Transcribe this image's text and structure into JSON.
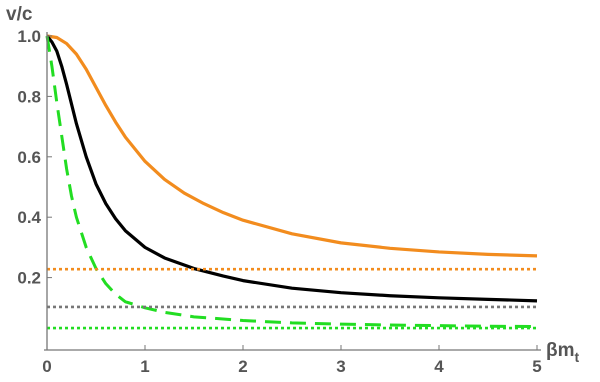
{
  "chart_data": {
    "type": "line",
    "title": "",
    "xlabel": "βm",
    "xlabel_sub": "t",
    "ylabel": "v/c",
    "xlim": [
      0,
      5
    ],
    "ylim": [
      0,
      1
    ],
    "grid": false,
    "legend": "none",
    "x_ticks": [
      "0",
      "1",
      "2",
      "3",
      "4",
      "5"
    ],
    "y_ticks": [
      "0.2",
      "0.4",
      "0.6",
      "0.8",
      "1.0"
    ],
    "x_tick_values": [
      0,
      1,
      2,
      3,
      4,
      5
    ],
    "y_tick_values": [
      0.2,
      0.4,
      0.6,
      0.8,
      1.0
    ],
    "series": [
      {
        "color": "#f28c1e",
        "style": "solid",
        "x": [
          0,
          0.1,
          0.2,
          0.3,
          0.4,
          0.5,
          0.6,
          0.7,
          0.8,
          1.0,
          1.2,
          1.4,
          1.6,
          1.8,
          2.0,
          2.5,
          3.0,
          3.5,
          4.0,
          4.5,
          5.0
        ],
        "y": [
          1.0,
          0.995,
          0.975,
          0.94,
          0.89,
          0.83,
          0.77,
          0.715,
          0.665,
          0.585,
          0.525,
          0.48,
          0.445,
          0.415,
          0.39,
          0.345,
          0.315,
          0.297,
          0.285,
          0.277,
          0.272
        ]
      },
      {
        "color": "#000000",
        "style": "solid",
        "x": [
          0,
          0.05,
          0.1,
          0.15,
          0.2,
          0.3,
          0.4,
          0.5,
          0.6,
          0.7,
          0.8,
          1.0,
          1.2,
          1.5,
          1.8,
          2.0,
          2.5,
          3.0,
          3.5,
          4.0,
          4.5,
          5.0
        ],
        "y": [
          1.0,
          0.98,
          0.95,
          0.9,
          0.84,
          0.71,
          0.6,
          0.51,
          0.445,
          0.395,
          0.355,
          0.3,
          0.265,
          0.23,
          0.205,
          0.19,
          0.165,
          0.15,
          0.14,
          0.133,
          0.128,
          0.123
        ]
      },
      {
        "color": "#22dd22",
        "style": "dashed",
        "x": [
          0,
          0.05,
          0.1,
          0.15,
          0.2,
          0.25,
          0.3,
          0.4,
          0.5,
          0.6,
          0.7,
          0.8,
          1.0,
          1.2,
          1.5,
          2.0,
          2.5,
          3.0,
          3.5,
          4.0,
          4.5,
          5.0
        ],
        "y": [
          1.0,
          0.9,
          0.78,
          0.67,
          0.56,
          0.47,
          0.4,
          0.3,
          0.23,
          0.18,
          0.145,
          0.12,
          0.1,
          0.085,
          0.07,
          0.058,
          0.05,
          0.046,
          0.043,
          0.041,
          0.039,
          0.038
        ]
      },
      {
        "color": "#f28c1e",
        "style": "dotted",
        "x": [
          0,
          5
        ],
        "y": [
          0.228,
          0.228
        ]
      },
      {
        "color": "#777777",
        "style": "dotted",
        "x": [
          0,
          5
        ],
        "y": [
          0.103,
          0.103
        ]
      },
      {
        "color": "#22dd22",
        "style": "dotted",
        "x": [
          0,
          5
        ],
        "y": [
          0.033,
          0.033
        ]
      }
    ]
  }
}
